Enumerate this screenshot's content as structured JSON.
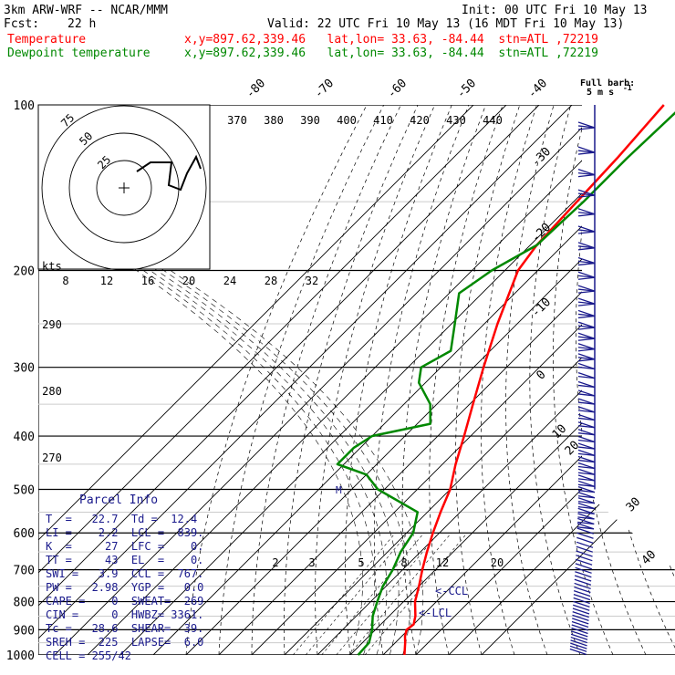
{
  "header": {
    "model": "3km ARW-WRF -- NCAR/MMM",
    "init": "Init: 00 UTC Fri 10 May 13",
    "fcst_label": "Fcst:",
    "fcst_value": "22 h",
    "valid": "Valid: 22 UTC Fri 10 May 13 (16 MDT Fri 10 May 13)",
    "temp_label": "Temperature",
    "temp_info": "x,y=897.62,339.46   lat,lon= 33.63, -84.44  stn=ATL ,72219",
    "dew_label": "Dewpoint temperature",
    "dew_info": "x,y=897.62,339.46   lat,lon= 33.63, -84.44  stn=ATL ,72219",
    "barb_legend_1": "Full barb:",
    "barb_legend_2": "5 m s",
    "barb_legend_3": "-1"
  },
  "colors": {
    "temperature": "#ff0000",
    "dewpoint": "#008800",
    "barbs": "#1a1a8c",
    "info": "#1a1a8c"
  },
  "pressure_ticks": [
    "100",
    "200",
    "300",
    "400",
    "500",
    "600",
    "700",
    "800",
    "900",
    "1000"
  ],
  "isotherm_labels": [
    "-80",
    "-70",
    "-60",
    "-50",
    "-40",
    "-30",
    "-20",
    "-10",
    "0",
    "10",
    "20",
    "30",
    "40"
  ],
  "theta_labels": [
    "370",
    "380",
    "390",
    "400",
    "410",
    "420",
    "430",
    "440"
  ],
  "theta_left_labels": [
    "290",
    "280",
    "270"
  ],
  "hodo_speed_labels": [
    "8",
    "12",
    "16",
    "20",
    "24",
    "28",
    "32"
  ],
  "hodo_unit": "kts",
  "hodo_ring_labels": [
    "75",
    "50",
    "25"
  ],
  "mixing_labels": [
    "2",
    "3",
    "5",
    "8",
    "12",
    "20"
  ],
  "ccl_label": "<-CCL",
  "lcl_label": "<-LCL",
  "level_marker": "M",
  "parcel_info": {
    "title": "Parcel Info",
    "rows": [
      "T  =   22.7  Td =  12.4",
      "LI =    2.2  LCL =  839.",
      "K  =     27  LFC =    0.",
      "TT =     43  EL  =    0.",
      "SWI =   3.9  CCL =  767.",
      "PW =   2.98  YGP =   0.0",
      "CAPE =    0  SWEAT=  269",
      "CIN =     0  HWBZ= 3361.",
      "Tc =   28.6  SHEAR=  39.",
      "SREH =  225  LAPSE=  6.0",
      "CELL = 255/42"
    ]
  },
  "chart_data": {
    "type": "line",
    "subtype": "skew-T log-P sounding",
    "y_axis": "pressure (hPa), log scale",
    "ylim": [
      1000,
      100
    ],
    "series": [
      {
        "name": "Temperature",
        "pressure": [
          1000,
          950,
          925,
          900,
          880,
          850,
          800,
          750,
          700,
          650,
          600,
          550,
          500,
          450,
          400,
          350,
          300,
          250,
          200,
          180,
          150,
          125,
          100
        ],
        "values": [
          26.5,
          23,
          21,
          19.5,
          20,
          18,
          13.5,
          10,
          6,
          2,
          -2,
          -6,
          -10,
          -16,
          -22,
          -29,
          -37,
          -46,
          -56,
          -58,
          -59,
          -60,
          -62
        ]
      },
      {
        "name": "Dewpoint temperature",
        "pressure": [
          1000,
          950,
          900,
          850,
          800,
          750,
          700,
          650,
          600,
          550,
          500,
          470,
          450,
          420,
          400,
          380,
          350,
          320,
          300,
          280,
          250,
          220,
          200,
          180,
          150,
          125,
          100
        ],
        "values": [
          12.4,
          12,
          9,
          5,
          2,
          -1,
          -3,
          -6,
          -8,
          -13,
          -32,
          -40,
          -52,
          -52,
          -50,
          -36,
          -42,
          -52,
          -56,
          -52,
          -59,
          -67,
          -64,
          -58,
          -57,
          -57,
          -56
        ]
      }
    ]
  }
}
